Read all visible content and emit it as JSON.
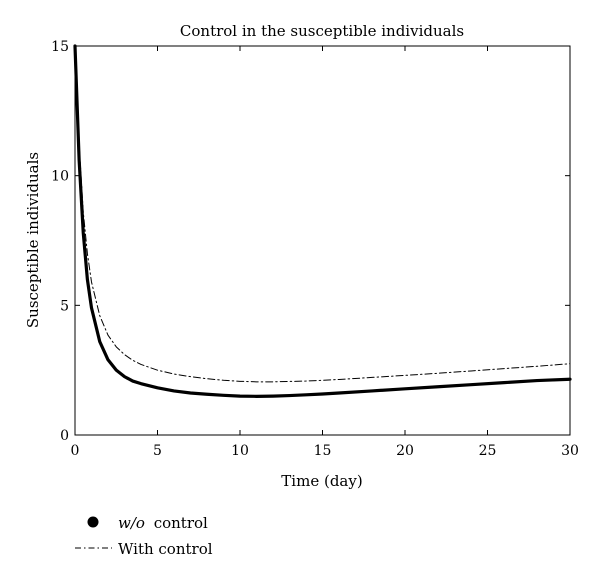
{
  "chart_data": {
    "type": "line",
    "title": "Control in the susceptible individuals",
    "xlabel": "Time (day)",
    "ylabel": "Susceptible individuals",
    "xlim": [
      0,
      30
    ],
    "ylim": [
      0,
      15
    ],
    "xticks": [
      "0",
      "5",
      "10",
      "15",
      "20",
      "25",
      "30"
    ],
    "yticks": [
      "0",
      "5",
      "10",
      "15"
    ],
    "grid": false,
    "legend_position": "bottom-left",
    "series": [
      {
        "name_italic": "w/o",
        "name_rest": "control",
        "style": "solid-thick",
        "color": "#000000",
        "x": [
          0,
          0.25,
          0.5,
          0.75,
          1,
          1.5,
          2,
          2.5,
          3,
          3.5,
          4,
          5,
          6,
          7,
          8,
          9,
          10,
          11,
          12,
          13,
          14,
          15,
          16,
          18,
          20,
          22,
          24,
          26,
          28,
          30
        ],
        "y": [
          15,
          10.6,
          7.8,
          6.0,
          4.9,
          3.6,
          2.9,
          2.5,
          2.25,
          2.08,
          1.98,
          1.82,
          1.7,
          1.62,
          1.57,
          1.53,
          1.5,
          1.49,
          1.5,
          1.52,
          1.55,
          1.58,
          1.62,
          1.7,
          1.78,
          1.86,
          1.94,
          2.02,
          2.1,
          2.15
        ]
      },
      {
        "name": "With control",
        "style": "dash-dot",
        "color": "#000000",
        "x": [
          0,
          0.25,
          0.5,
          0.75,
          1,
          1.5,
          2,
          2.5,
          3,
          3.5,
          4,
          5,
          6,
          7,
          8,
          9,
          10,
          11,
          12,
          14,
          16,
          18,
          20,
          22,
          24,
          26,
          28,
          30
        ],
        "y": [
          15,
          11.2,
          8.6,
          7.0,
          5.9,
          4.6,
          3.85,
          3.4,
          3.1,
          2.88,
          2.72,
          2.5,
          2.35,
          2.25,
          2.17,
          2.11,
          2.07,
          2.05,
          2.05,
          2.08,
          2.14,
          2.22,
          2.3,
          2.38,
          2.47,
          2.56,
          2.65,
          2.75
        ]
      }
    ]
  }
}
